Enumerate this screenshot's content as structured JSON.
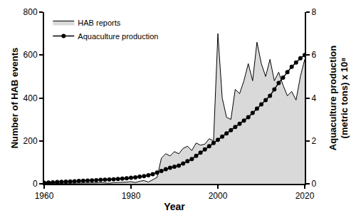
{
  "chart_data": {
    "type": "line",
    "xlabel": "Year",
    "ylabel": "Number of HAB events",
    "y2label": [
      "Aquaculture production",
      "(metric tons) x 10⁸"
    ],
    "x": [
      1960,
      1961,
      1962,
      1963,
      1964,
      1965,
      1966,
      1967,
      1968,
      1969,
      1970,
      1971,
      1972,
      1973,
      1974,
      1975,
      1976,
      1977,
      1978,
      1979,
      1980,
      1981,
      1982,
      1983,
      1984,
      1985,
      1986,
      1987,
      1988,
      1989,
      1990,
      1991,
      1992,
      1993,
      1994,
      1995,
      1996,
      1997,
      1998,
      1999,
      2000,
      2001,
      2002,
      2003,
      2004,
      2005,
      2006,
      2007,
      2008,
      2009,
      2010,
      2011,
      2012,
      2013,
      2014,
      2015,
      2016,
      2017,
      2018,
      2019,
      2020
    ],
    "series": [
      {
        "name": "HAB reports",
        "type": "area",
        "color": "#d9d9d9",
        "values": [
          2,
          2,
          3,
          2,
          3,
          3,
          2,
          4,
          3,
          3,
          4,
          3,
          4,
          5,
          4,
          3,
          5,
          6,
          5,
          8,
          10,
          6,
          12,
          15,
          8,
          18,
          30,
          120,
          140,
          130,
          150,
          140,
          165,
          175,
          155,
          190,
          180,
          185,
          210,
          200,
          700,
          400,
          310,
          300,
          440,
          420,
          480,
          560,
          480,
          660,
          560,
          500,
          580,
          480,
          520,
          460,
          410,
          430,
          390,
          500,
          580
        ]
      },
      {
        "name": "Aquaculture production",
        "type": "line",
        "color": "#000000",
        "marker": "circle",
        "line_style": "solid",
        "axis": "y2",
        "values": [
          0.05,
          0.06,
          0.07,
          0.08,
          0.09,
          0.1,
          0.11,
          0.12,
          0.13,
          0.14,
          0.15,
          0.16,
          0.17,
          0.18,
          0.19,
          0.2,
          0.21,
          0.22,
          0.24,
          0.26,
          0.28,
          0.3,
          0.33,
          0.36,
          0.4,
          0.45,
          0.52,
          0.6,
          0.68,
          0.75,
          0.8,
          0.85,
          0.95,
          1.05,
          1.15,
          1.3,
          1.45,
          1.6,
          1.75,
          1.9,
          2.05,
          2.2,
          2.35,
          2.5,
          2.65,
          2.8,
          2.95,
          3.1,
          3.3,
          3.5,
          3.7,
          3.9,
          4.1,
          4.4,
          4.7,
          4.95,
          5.2,
          5.45,
          5.65,
          5.85,
          6.0
        ]
      }
    ],
    "xlim": [
      1960,
      2020
    ],
    "xticks": [
      1960,
      1980,
      2000,
      2020
    ],
    "ylim": [
      0,
      800
    ],
    "yticks": [
      0,
      200,
      400,
      600,
      800
    ],
    "y2lim": [
      0,
      8
    ],
    "y2ticks": [
      0,
      2,
      4,
      6,
      8
    ],
    "grid": false,
    "legend": "upper left"
  }
}
